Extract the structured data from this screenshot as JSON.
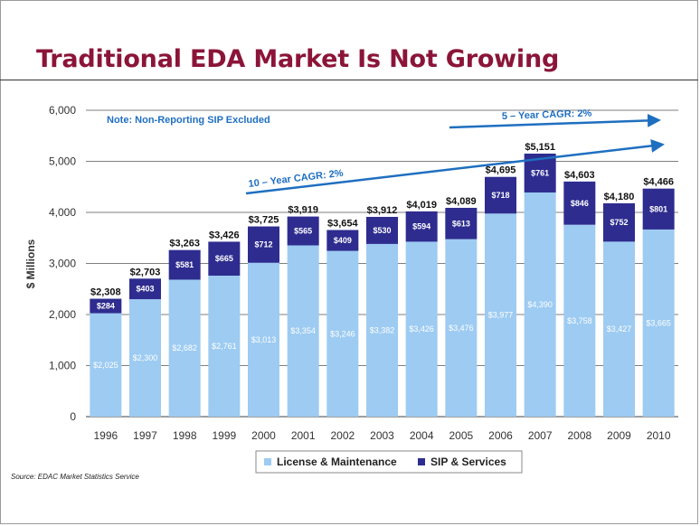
{
  "slide": {
    "title": "Traditional EDA Market Is Not Growing",
    "source": "Source:  EDAC Market Statistics Service"
  },
  "colors": {
    "license": "#9dcbf2",
    "sip": "#2e2c8f",
    "title": "#8b1538",
    "annotation": "#1f6fc0"
  },
  "chart_data": {
    "type": "bar",
    "stacked": true,
    "title": "",
    "xlabel": "",
    "ylabel": "$ Millions",
    "ylim": [
      0,
      6000
    ],
    "yticks": [
      "0",
      "1,000",
      "2,000",
      "3,000",
      "4,000",
      "5,000",
      "6,000"
    ],
    "ytick_values": [
      0,
      1000,
      2000,
      3000,
      4000,
      5000,
      6000
    ],
    "grid": true,
    "legend_position": "bottom",
    "categories": [
      "1996",
      "1997",
      "1998",
      "1999",
      "2000",
      "2001",
      "2002",
      "2003",
      "2004",
      "2005",
      "2006",
      "2007",
      "2008",
      "2009",
      "2010"
    ],
    "series": [
      {
        "name": "License & Maintenance",
        "values": [
          2025,
          2300,
          2682,
          2761,
          3013,
          3354,
          3246,
          3382,
          3426,
          3476,
          3977,
          4390,
          3758,
          3427,
          3665
        ],
        "labels": [
          "$2,025",
          "$2,300",
          "$2,682",
          "$2,761",
          "$3,013",
          "$3,354",
          "$3,246",
          "$3,382",
          "$3,426",
          "$3,476",
          "$3,977",
          "$4,390",
          "$3,758",
          "$3,427",
          "$3,665"
        ]
      },
      {
        "name": "SIP & Services",
        "values": [
          284,
          403,
          581,
          665,
          712,
          565,
          409,
          530,
          594,
          613,
          718,
          761,
          846,
          752,
          801
        ],
        "labels": [
          "$284",
          "$403",
          "$581",
          "$665",
          "$712",
          "$565",
          "$409",
          "$530",
          "$594",
          "$613",
          "$718",
          "$761",
          "$846",
          "$752",
          "$801"
        ]
      }
    ],
    "totals": [
      2308,
      2703,
      3263,
      3426,
      3725,
      3919,
      3654,
      3912,
      4019,
      4089,
      4695,
      5151,
      4603,
      4180,
      4466
    ],
    "total_labels": [
      "$2,308",
      "$2,703",
      "$3,263",
      "$3,426",
      "$3,725",
      "$3,919",
      "$3,654",
      "$3,912",
      "$4,019",
      "$4,089",
      "$4,695",
      "$5,151",
      "$4,603",
      "$4,180",
      "$4,466"
    ],
    "annotations": {
      "note": "Note: Non-Reporting SIP Excluded",
      "cagr_5": "5 – Year CAGR:  2%",
      "cagr_10": "10 – Year CAGR:  2%"
    }
  }
}
